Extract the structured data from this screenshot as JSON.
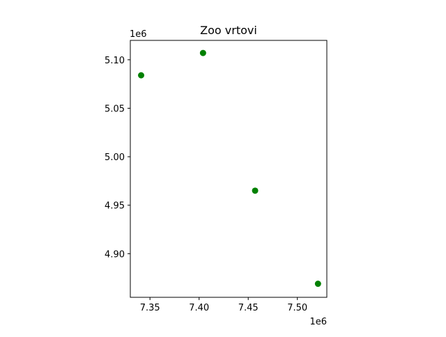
{
  "chart_data": {
    "type": "scatter",
    "title": "Zoo vrtovi",
    "xlabel": "",
    "ylabel": "",
    "x_offset_label": "1e6",
    "y_offset_label": "1e6",
    "xlim": [
      7.33,
      7.53
    ],
    "ylim": [
      4.855,
      5.12
    ],
    "x_ticks": [
      7.35,
      7.4,
      7.45,
      7.5
    ],
    "x_tick_labels": [
      "7.35",
      "7.40",
      "7.45",
      "7.50"
    ],
    "y_ticks": [
      4.9,
      4.95,
      5.0,
      5.05,
      5.1
    ],
    "y_tick_labels": [
      "4.90",
      "4.95",
      "5.00",
      "5.05",
      "5.10"
    ],
    "grid": false,
    "marker_color": "#008000",
    "series": [
      {
        "x": [
          7.341,
          7.404,
          7.457,
          7.521
        ],
        "y": [
          5.084,
          5.107,
          4.965,
          4.869
        ]
      }
    ]
  }
}
